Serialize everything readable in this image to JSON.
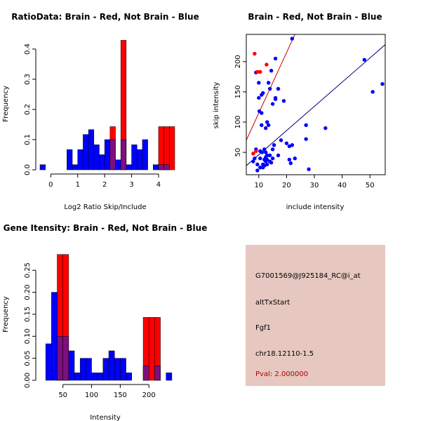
{
  "colors": {
    "red": "#ff0000",
    "blue": "#0000ff",
    "purple": "#7f0f7f",
    "info_bg": "#e6c8c0",
    "pval": "#b00000",
    "fit_red": "#cc0000",
    "fit_blue": "#00008b"
  },
  "chart_data": [
    {
      "id": "ratio_hist",
      "type": "bar",
      "title": "RatioData: Brain - Red, Not Brain - Blue",
      "xlabel": "Log2 Ratio Skip/Include",
      "ylabel": "Frequency",
      "xlim": [
        -0.4,
        4.6
      ],
      "ylim": [
        0,
        0.43
      ],
      "xticks": [
        0,
        1,
        2,
        3,
        4
      ],
      "yticks": [
        0.0,
        0.1,
        0.2,
        0.3,
        0.4
      ],
      "ytick_labels": [
        "0.0",
        "0.1",
        "0.2",
        "0.3",
        "0.4"
      ],
      "bin_starts": [
        -0.4,
        -0.2,
        0.0,
        0.2,
        0.4,
        0.6,
        0.8,
        1.0,
        1.2,
        1.4,
        1.6,
        1.8,
        2.0,
        2.2,
        2.4,
        2.6,
        2.8,
        3.0,
        3.2,
        3.4,
        3.6,
        3.8,
        4.0,
        4.2,
        4.4
      ],
      "bin_width": 0.2,
      "series": [
        {
          "name": "Brain",
          "color": "red",
          "values": [
            0,
            0,
            0,
            0,
            0,
            0,
            0,
            0,
            0,
            0,
            0,
            0,
            0,
            0.143,
            0,
            0.429,
            0,
            0,
            0,
            0,
            0,
            0,
            0.143,
            0.143,
            0.143
          ]
        },
        {
          "name": "Not Brain",
          "color": "blue",
          "values": [
            0.017,
            0,
            0,
            0,
            0,
            0.067,
            0.017,
            0.067,
            0.117,
            0.133,
            0.083,
            0.05,
            0.1,
            0.1,
            0.033,
            0.1,
            0.017,
            0.083,
            0.067,
            0.1,
            0,
            0.017,
            0.017,
            0.017,
            0
          ]
        }
      ]
    },
    {
      "id": "scatter",
      "type": "scatter",
      "title": "Brain - Red, Not Brain - Blue",
      "xlabel": "include intensity",
      "ylabel": "skip intensity",
      "xlim": [
        5.5,
        55.5
      ],
      "ylim": [
        13,
        245
      ],
      "xticks": [
        10,
        20,
        30,
        40,
        50
      ],
      "yticks": [
        50,
        100,
        150,
        200
      ],
      "series": [
        {
          "name": "Brain",
          "color": "red",
          "x": [
            8.5,
            9.5,
            10.5,
            12.8,
            9.0,
            8.0
          ],
          "y": [
            213,
            183,
            183,
            195,
            52,
            48
          ]
        },
        {
          "name": "Not Brain",
          "color": "blue",
          "x": [
            8.0,
            8.5,
            9.0,
            9.5,
            10.0,
            10.2,
            10.5,
            11.0,
            11.0,
            11.2,
            11.5,
            12.0,
            12.5,
            12.5,
            13.0,
            13.0,
            13.5,
            13.5,
            14.0,
            14.0,
            14.5,
            15.0,
            15.0,
            16.0,
            16.0,
            17.0,
            18.0,
            19.0,
            20.0,
            21.0,
            21.0,
            21.5,
            22.0,
            22.0,
            23.0,
            27.0,
            27.0,
            28.0,
            34.0,
            48.0,
            51.0,
            54.5,
            9.0,
            10.0,
            10.5,
            11.0,
            11.5,
            12.0,
            12.5,
            13.0,
            14.0,
            15.0,
            16.0,
            17.0,
            9.5,
            10.5,
            11.5,
            12.0,
            12.5,
            13.0,
            14.5,
            15.5
          ],
          "y": [
            35,
            40,
            55,
            30,
            140,
            118,
            40,
            95,
            145,
            50,
            25,
            55,
            50,
            90,
            100,
            30,
            95,
            165,
            45,
            35,
            185,
            130,
            40,
            140,
            205,
            155,
            70,
            135,
            65,
            38,
            60,
            32,
            238,
            62,
            40,
            95,
            72,
            22,
            90,
            203,
            150,
            163,
            182,
            165,
            52,
            115,
            148,
            38,
            35,
            45,
            155,
            55,
            138,
            45,
            20,
            25,
            30,
            28,
            42,
            38,
            33,
            62
          ]
        }
      ],
      "fit_lines": [
        {
          "name": "Brain",
          "color": "fit_red",
          "slope": 10.0,
          "intercept": 15
        },
        {
          "name": "Not Brain",
          "color": "fit_blue",
          "slope": 4.0,
          "intercept": 6
        }
      ]
    },
    {
      "id": "gene_hist",
      "type": "bar",
      "title": "Gene Itensity: Brain - Red, Not Brain - Blue",
      "xlabel": "Intensity",
      "ylabel": "Frequency",
      "xlim": [
        10,
        245
      ],
      "ylim": [
        0,
        0.295
      ],
      "xticks": [
        50,
        100,
        150,
        200
      ],
      "yticks": [
        0.0,
        0.05,
        0.1,
        0.15,
        0.2,
        0.25
      ],
      "ytick_labels": [
        "0.00",
        "0.05",
        "0.10",
        "0.15",
        "0.20",
        "0.25"
      ],
      "bin_starts": [
        20,
        30,
        40,
        50,
        60,
        70,
        80,
        90,
        100,
        110,
        120,
        130,
        140,
        150,
        160,
        170,
        180,
        190,
        200,
        210,
        220,
        230
      ],
      "bin_width": 10,
      "series": [
        {
          "name": "Brain",
          "color": "red",
          "values": [
            0,
            0,
            0.286,
            0.286,
            0,
            0,
            0,
            0,
            0,
            0,
            0,
            0,
            0,
            0,
            0,
            0,
            0,
            0.143,
            0.143,
            0.143,
            0,
            0
          ]
        },
        {
          "name": "Not Brain",
          "color": "blue",
          "values": [
            0.083,
            0.2,
            0.1,
            0.1,
            0.067,
            0.017,
            0.05,
            0.05,
            0.017,
            0.017,
            0.05,
            0.067,
            0.05,
            0.05,
            0.017,
            0,
            0,
            0.033,
            0,
            0.033,
            0,
            0.017
          ]
        }
      ]
    }
  ],
  "info_panel": {
    "probe_id": "G7001569@J925184_RC@i_at",
    "event_type": "altTxStart",
    "gene": "Fgf1",
    "location": "chr18.12110-1.5",
    "pval": "Pval: 2.000000"
  }
}
